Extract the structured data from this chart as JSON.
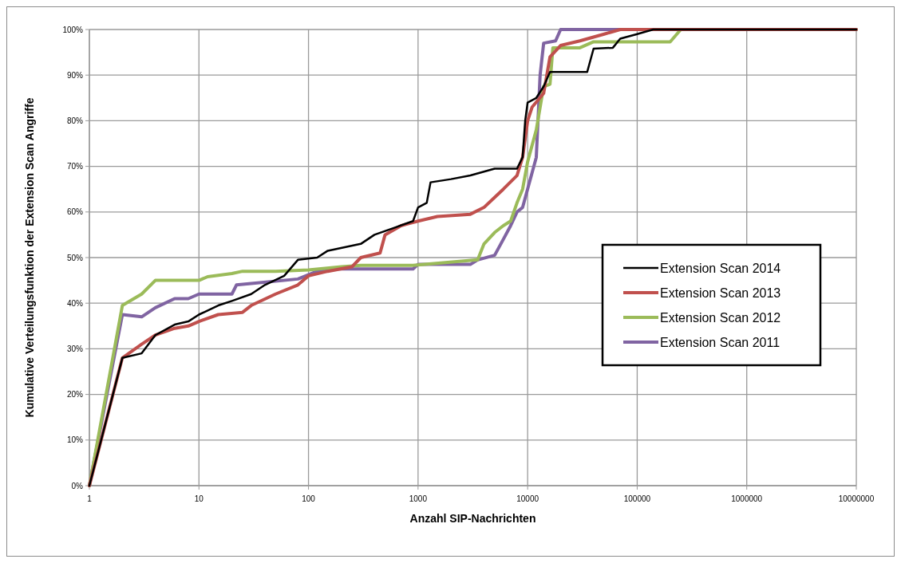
{
  "chart_data": {
    "type": "line",
    "xlabel": "Anzahl SIP-Nachrichten",
    "ylabel": "Kumulative Verteilungsfunktion der Extension Scan Angriffe",
    "log": "x",
    "grid": true,
    "legend": "right",
    "marker": "none",
    "line_style": "solid",
    "xlim": [
      1,
      10000000
    ],
    "xticks": [
      1,
      10,
      100,
      1000,
      10000,
      100000,
      1000000,
      10000000
    ],
    "ylim": [
      0,
      100
    ],
    "yticks": [
      {
        "value": 0,
        "label": "0%"
      },
      {
        "value": 10,
        "label": "10%"
      },
      {
        "value": 20,
        "label": "20%"
      },
      {
        "value": 30,
        "label": "30%"
      },
      {
        "value": 40,
        "label": "40%"
      },
      {
        "value": 50,
        "label": "50%"
      },
      {
        "value": 60,
        "label": "60%"
      },
      {
        "value": 70,
        "label": "70%"
      },
      {
        "value": 80,
        "label": "80%"
      },
      {
        "value": 90,
        "label": "90%"
      },
      {
        "value": 100,
        "label": "100%"
      }
    ],
    "series": [
      {
        "name": "Extension Scan 2014",
        "color": "#000000",
        "x": [
          1,
          2,
          3,
          4,
          6,
          8,
          10,
          15,
          20,
          30,
          40,
          60,
          80,
          120,
          150,
          300,
          400,
          600,
          900,
          1000,
          1200,
          1300,
          2000,
          3000,
          5000,
          8000,
          9000,
          9500,
          10000,
          12000,
          14000,
          16000,
          35000,
          40000,
          60000,
          70000,
          100000,
          140000,
          10000000
        ],
        "values": [
          0,
          28,
          29,
          33,
          35.3,
          36,
          37.5,
          39.5,
          40.5,
          42,
          44,
          46,
          49.5,
          50,
          51.5,
          53,
          55,
          56.5,
          58,
          61,
          62,
          66.5,
          67.2,
          68,
          69.5,
          69.5,
          72,
          80,
          84,
          85,
          87.5,
          90.7,
          90.7,
          95.8,
          96,
          98,
          99,
          100,
          100
        ]
      },
      {
        "name": "Extension Scan 2013",
        "color": "#c0504d",
        "x": [
          1,
          2,
          3,
          4,
          6,
          8,
          10,
          15,
          25,
          30,
          50,
          80,
          100,
          150,
          250,
          300,
          450,
          500,
          700,
          1000,
          1500,
          3000,
          4000,
          6000,
          8000,
          9000,
          10000,
          11000,
          14000,
          16000,
          20000,
          30000,
          50000,
          70000,
          10000000
        ],
        "values": [
          0,
          28,
          31,
          33,
          34.5,
          35,
          36,
          37.5,
          38,
          39.5,
          42,
          44,
          46,
          47,
          48,
          50,
          51,
          55,
          57,
          58,
          59,
          59.5,
          61,
          65,
          68,
          72,
          80,
          83,
          86,
          94,
          96.5,
          97.5,
          99,
          100,
          100
        ]
      },
      {
        "name": "Extension Scan 2012",
        "color": "#9bbb59",
        "x": [
          1,
          2,
          3,
          4,
          5,
          10,
          12,
          20,
          25,
          50,
          100,
          200,
          300,
          900,
          3500,
          4000,
          5000,
          6000,
          7000,
          8000,
          9000,
          10000,
          12000,
          14000,
          16000,
          17000,
          30000,
          40000,
          200000,
          250000,
          10000000
        ],
        "values": [
          0,
          39.5,
          42,
          45,
          45,
          45,
          45.8,
          46.5,
          47,
          47,
          47.3,
          48,
          48.3,
          48.3,
          49.5,
          53,
          55.5,
          57,
          58,
          62,
          65,
          71,
          78,
          87.5,
          88,
          96,
          96,
          97.3,
          97.3,
          100,
          100
        ]
      },
      {
        "name": "Extension Scan 2011",
        "color": "#8064a2",
        "x": [
          1,
          2,
          3,
          4,
          6,
          8,
          10,
          20,
          22,
          30,
          80,
          120,
          150,
          900,
          1000,
          3000,
          3500,
          5000,
          6000,
          7000,
          8000,
          9000,
          12000,
          13000,
          14000,
          18000,
          20000,
          10000000
        ],
        "values": [
          0,
          37.5,
          37,
          39,
          41,
          41,
          42,
          42,
          44,
          44.3,
          45.3,
          47,
          47.5,
          47.5,
          48.5,
          48.5,
          49.5,
          50.5,
          54,
          57,
          60,
          61,
          72,
          90,
          97,
          97.5,
          100,
          100
        ]
      }
    ]
  }
}
